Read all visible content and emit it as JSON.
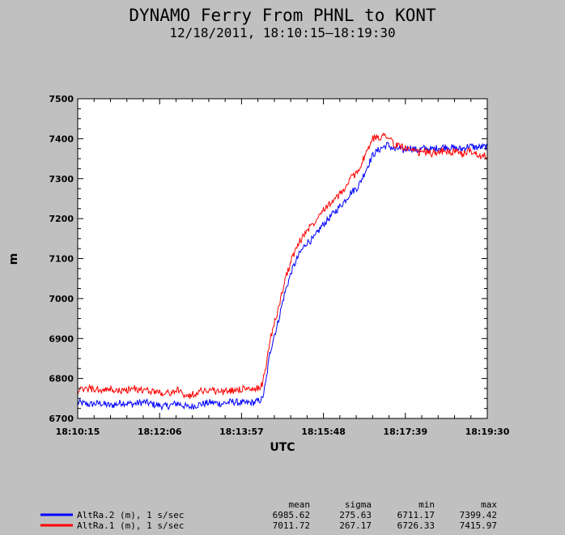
{
  "chart_data": {
    "type": "line",
    "title": "DYNAMO Ferry From PHNL to KONT",
    "subtitle": "12/18/2011, 18:10:15–18:19:30",
    "xlabel": "UTC",
    "ylabel": "m",
    "xlim": [
      0,
      555
    ],
    "ylim": [
      6700,
      7500
    ],
    "x_tick_labels": [
      "18:10:15",
      "18:12:06",
      "18:13:57",
      "18:15:48",
      "18:17:39",
      "18:19:30"
    ],
    "x_tick_values": [
      0,
      111,
      222,
      333,
      444,
      555
    ],
    "y_ticks": [
      6700,
      6800,
      6900,
      7000,
      7100,
      7200,
      7300,
      7400,
      7500
    ],
    "grid": false,
    "stats_headers": [
      "mean",
      "sigma",
      "min",
      "max"
    ],
    "series": [
      {
        "name": "AltRa.2 (m), 1 s/sec",
        "color": "#0000ff",
        "stats": [
          "6985.62",
          "275.63",
          "6711.17",
          "7399.42"
        ],
        "x": [
          0,
          15,
          30,
          45,
          60,
          75,
          90,
          105,
          120,
          135,
          150,
          165,
          180,
          195,
          210,
          225,
          240,
          250,
          255,
          260,
          265,
          270,
          280,
          290,
          300,
          310,
          320,
          330,
          340,
          350,
          360,
          370,
          380,
          390,
          400,
          410,
          420,
          425,
          430,
          435,
          440,
          450,
          460,
          470,
          480,
          490,
          500,
          510,
          520,
          530,
          540,
          555
        ],
        "y": [
          6740,
          6735,
          6738,
          6732,
          6740,
          6736,
          6741,
          6734,
          6730,
          6738,
          6728,
          6735,
          6740,
          6737,
          6742,
          6738,
          6740,
          6748,
          6790,
          6860,
          6900,
          6930,
          7010,
          7070,
          7110,
          7140,
          7150,
          7180,
          7200,
          7220,
          7240,
          7265,
          7280,
          7320,
          7360,
          7375,
          7385,
          7378,
          7372,
          7376,
          7370,
          7378,
          7371,
          7376,
          7373,
          7378,
          7380,
          7376,
          7374,
          7382,
          7378,
          7380
        ]
      },
      {
        "name": "AltRa.1 (m), 1 s/sec",
        "color": "#ff0000",
        "stats": [
          "7011.72",
          "267.17",
          "6726.33",
          "7415.97"
        ],
        "x": [
          0,
          15,
          30,
          45,
          60,
          75,
          90,
          105,
          120,
          135,
          150,
          165,
          180,
          195,
          210,
          225,
          240,
          250,
          255,
          260,
          265,
          270,
          280,
          290,
          300,
          310,
          320,
          330,
          340,
          350,
          360,
          370,
          380,
          390,
          400,
          410,
          420,
          425,
          430,
          435,
          440,
          450,
          460,
          470,
          480,
          490,
          500,
          510,
          520,
          530,
          540,
          555
        ],
        "y": [
          6768,
          6775,
          6770,
          6772,
          6768,
          6775,
          6770,
          6768,
          6762,
          6770,
          6755,
          6768,
          6772,
          6766,
          6770,
          6775,
          6770,
          6785,
          6830,
          6890,
          6930,
          6960,
          7040,
          7100,
          7140,
          7170,
          7190,
          7220,
          7235,
          7250,
          7270,
          7300,
          7320,
          7360,
          7400,
          7405,
          7410,
          7395,
          7380,
          7385,
          7380,
          7370,
          7365,
          7368,
          7362,
          7370,
          7366,
          7368,
          7360,
          7370,
          7362,
          7355
        ]
      }
    ]
  }
}
